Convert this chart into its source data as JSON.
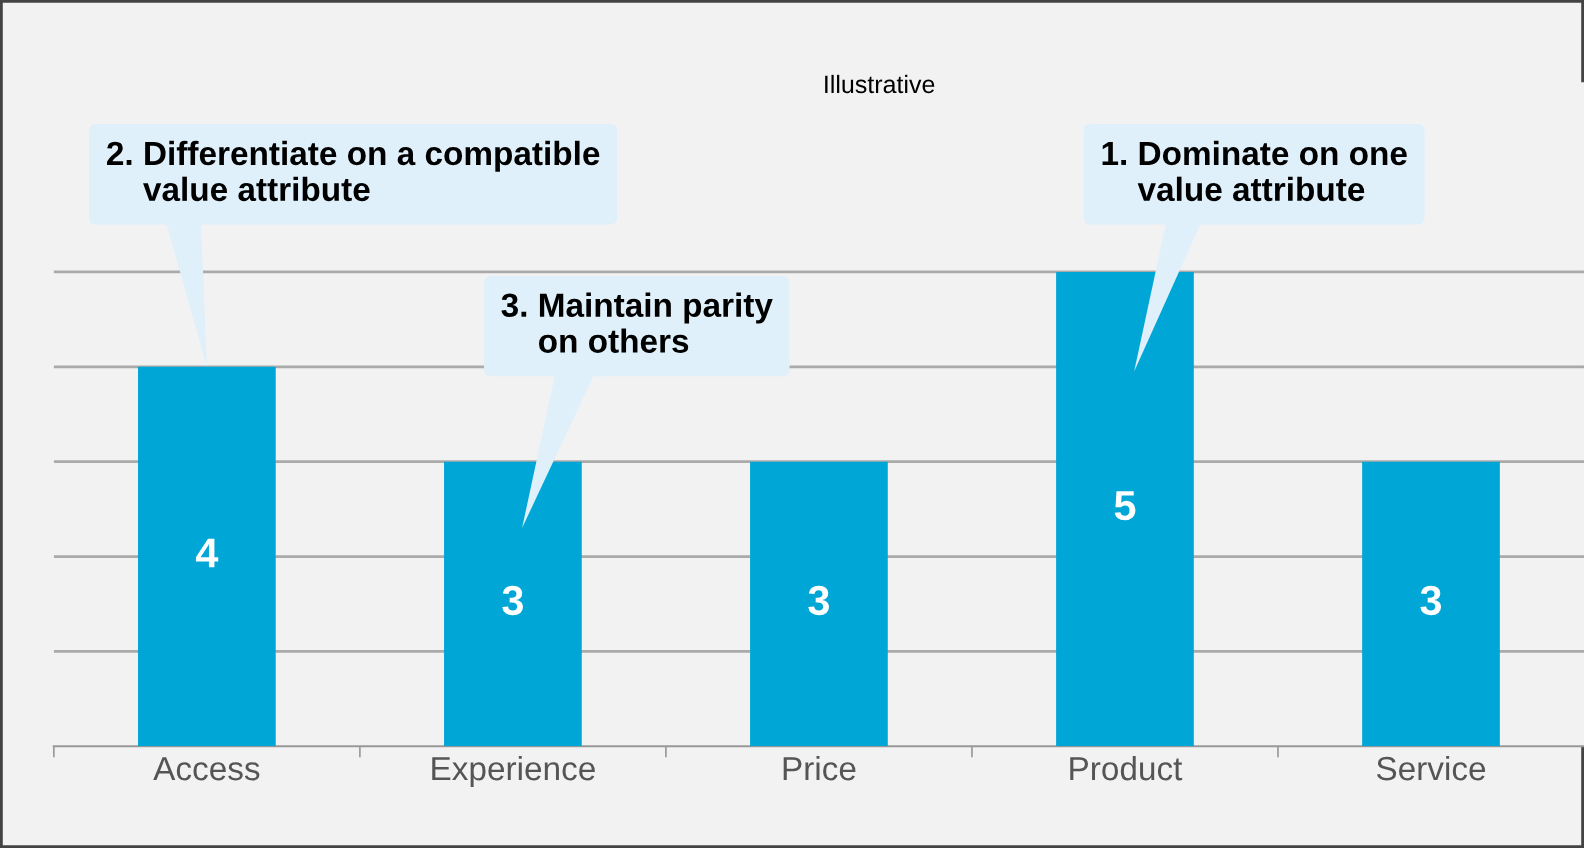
{
  "chart_data": {
    "type": "bar",
    "title": "Illustrative",
    "categories": [
      "Access",
      "Experience",
      "Price",
      "Product",
      "Service"
    ],
    "values": [
      4,
      3,
      3,
      5,
      3
    ],
    "color": "#00a6d6",
    "data_labels": true,
    "ylim": [
      0,
      7
    ],
    "yticks": [
      {
        "value": 1,
        "label": null
      },
      {
        "value": 2,
        "label": null
      },
      {
        "value": 3,
        "label": null
      },
      {
        "value": 4,
        "label": null
      },
      {
        "value": 5,
        "label": null
      }
    ],
    "grid": "y",
    "tick_labels": "x",
    "annotations": [
      "2. Differentiate on a compatible\n    value attribute",
      "3. Maintain parity\n    on others",
      "1. Dominate on one\n    value attribute"
    ]
  }
}
